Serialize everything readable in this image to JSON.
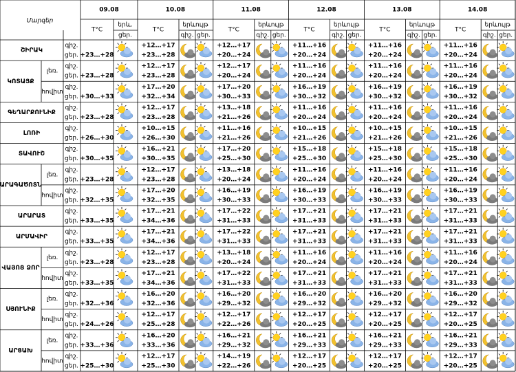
{
  "header": {
    "title": "Մարզեր",
    "dates": [
      "09.08",
      "10.08",
      "11.08",
      "12.08",
      "13.08",
      "14.08"
    ],
    "temp_label": "T°C",
    "phenomenon_short": "երև.",
    "phenomenon": "երևույթ",
    "night": "գիշ.",
    "day": "ցեր."
  },
  "regions": [
    {
      "name": "ՇԻՐԱԿ",
      "subrows": [
        {
          "first": "+23…+28",
          "days": [
            [
              "+12…+17",
              "+23…+28"
            ],
            [
              "+12…+17",
              "+20…+24"
            ],
            [
              "+11…+16",
              "+20…+24"
            ],
            [
              "+11…+16",
              "+20…+24"
            ],
            [
              "+11…+16",
              "+20…+24"
            ]
          ]
        }
      ]
    },
    {
      "name": "ԿՈՏԱՅՔ",
      "subrows": [
        {
          "label": "լեռ.",
          "first": "+23…+28",
          "days": [
            [
              "+12…+17",
              "+23…+28"
            ],
            [
              "+12…+17",
              "+20…+24"
            ],
            [
              "+11…+16",
              "+20…+24"
            ],
            [
              "+11…+16",
              "+20…+24"
            ],
            [
              "+11…+16",
              "+20…+24"
            ]
          ]
        },
        {
          "label": "հովիտ",
          "first": "+30…+33",
          "days": [
            [
              "+17…+20",
              "+32…+34"
            ],
            [
              "+17…+20",
              "+30…+33"
            ],
            [
              "+16…+19",
              "+30…+32"
            ],
            [
              "+16…+19",
              "+30…+32"
            ],
            [
              "+16…+19",
              "+30…+32"
            ]
          ]
        }
      ]
    },
    {
      "name": "ԳԵՂԱՐՔՈՒՆԻՔ",
      "subrows": [
        {
          "first": "+23…+28",
          "days": [
            [
              "+12…+17",
              "+23…+28"
            ],
            [
              "+13…+18",
              "+21…+26"
            ],
            [
              "+11…+16",
              "+20…+24"
            ],
            [
              "+11…+16",
              "+20…+24"
            ],
            [
              "+11…+16",
              "+20…+24"
            ]
          ]
        }
      ]
    },
    {
      "name": "ԼՈՌԻ",
      "subrows": [
        {
          "first": "+26…+30",
          "days": [
            [
              "+10…+15",
              "+26…+30"
            ],
            [
              "+11…+16",
              "+21…+26"
            ],
            [
              "+10…+15",
              "+21…+26"
            ],
            [
              "+10…+15",
              "+21…+26"
            ],
            [
              "+10…+15",
              "+21…+26"
            ]
          ]
        }
      ]
    },
    {
      "name": "ՏԱՎՈՒՇ",
      "subrows": [
        {
          "first": "+30…+35",
          "days": [
            [
              "+16…+21",
              "+30…+35"
            ],
            [
              "+17…+20",
              "+25…+30"
            ],
            [
              "+15…+18",
              "+25…+30"
            ],
            [
              "+15…+18",
              "+25…+30"
            ],
            [
              "+15…+18",
              "+25…+30"
            ]
          ]
        }
      ]
    },
    {
      "name": "ԱՐԱԳԱԾՈՏՆ",
      "subrows": [
        {
          "label": "լեռ.",
          "first": "+23…+28",
          "days": [
            [
              "+12…+17",
              "+23…+28"
            ],
            [
              "+13…+18",
              "+20…+24"
            ],
            [
              "+11…+16",
              "+20…+24"
            ],
            [
              "+11…+16",
              "+20…+24"
            ],
            [
              "+11…+16",
              "+20…+24"
            ]
          ]
        },
        {
          "label": "հովիտ",
          "first": "+32…+35",
          "days": [
            [
              "+17…+20",
              "+32…+35"
            ],
            [
              "+16…+19",
              "+30…+33"
            ],
            [
              "+16…+19",
              "+30…+33"
            ],
            [
              "+16…+19",
              "+30…+33"
            ],
            [
              "+16…+19",
              "+30…+33"
            ]
          ]
        }
      ]
    },
    {
      "name": "ԱՐԱՐԱՏ",
      "subrows": [
        {
          "first": "+33…+35",
          "days": [
            [
              "+17…+21",
              "+34…+36"
            ],
            [
              "+17…+22",
              "+31…+33"
            ],
            [
              "+17…+21",
              "+31…+33"
            ],
            [
              "+17…+21",
              "+31…+33"
            ],
            [
              "+17…+21",
              "+31…+33"
            ]
          ]
        }
      ]
    },
    {
      "name": "ԱՐՄԱՎԻՐ",
      "subrows": [
        {
          "first": "+33…+35",
          "days": [
            [
              "+17…+21",
              "+34…+36"
            ],
            [
              "+17…+22",
              "+31…+33"
            ],
            [
              "+17…+21",
              "+31…+33"
            ],
            [
              "+17…+21",
              "+31…+33"
            ],
            [
              "+17…+21",
              "+31…+33"
            ]
          ]
        }
      ]
    },
    {
      "name": "ՎԱՅՈՑ ՁՈՐ",
      "subrows": [
        {
          "label": "լեռ.",
          "first": "+23…+28",
          "days": [
            [
              "+12…+17",
              "+23…+28"
            ],
            [
              "+13…+18",
              "+20…+24"
            ],
            [
              "+11…+16",
              "+20…+24"
            ],
            [
              "+11…+16",
              "+20…+24"
            ],
            [
              "+11…+16",
              "+20…+24"
            ]
          ]
        },
        {
          "label": "հովիտ",
          "first": "+33…+35",
          "days": [
            [
              "+17…+21",
              "+34…+36"
            ],
            [
              "+17…+22",
              "+31…+33"
            ],
            [
              "+17…+21",
              "+31…+33"
            ],
            [
              "+17…+21",
              "+31…+33"
            ],
            [
              "+17…+21",
              "+31…+33"
            ]
          ]
        }
      ]
    },
    {
      "name": "ՍՅՈՒՆԻՔ",
      "subrows": [
        {
          "label": "լեռ.",
          "first": "+32…+36",
          "days": [
            [
              "+16…+20",
              "+32…+36"
            ],
            [
              "+16…+20",
              "+29…+32"
            ],
            [
              "+16…+20",
              "+29…+32"
            ],
            [
              "+16…+20",
              "+29…+32"
            ],
            [
              "+16…+20",
              "+29…+32"
            ]
          ]
        },
        {
          "label": "հովիտ",
          "first": "+24…+26",
          "days": [
            [
              "+12…+17",
              "+25…+28"
            ],
            [
              "+12…+17",
              "+22…+26"
            ],
            [
              "+12…+17",
              "+20…+25"
            ],
            [
              "+12…+17",
              "+20…+25"
            ],
            [
              "+12…+17",
              "+20…+25"
            ]
          ]
        }
      ]
    },
    {
      "name": "ԱՐՑԱԽ",
      "subrows": [
        {
          "label": "լեռ.",
          "first": "+33…+36",
          "days": [
            [
              "+16…+20",
              "+33…+36"
            ],
            [
              "+16…+21",
              "+29…+32"
            ],
            [
              "+16…+21",
              "+29…+33"
            ],
            [
              "+16…+21",
              "+29…+33"
            ],
            [
              "+16…+21",
              "+29…+33"
            ]
          ]
        },
        {
          "label": "հովիտ",
          "first": "+25…+30",
          "days": [
            [
              "+12…+17",
              "+25…+30"
            ],
            [
              "+14…+19",
              "+22…+26"
            ],
            [
              "+12…+17",
              "+20…+25"
            ],
            [
              "+12…+17",
              "+20…+25"
            ],
            [
              "+12…+17",
              "+20…+25"
            ]
          ]
        }
      ]
    }
  ]
}
